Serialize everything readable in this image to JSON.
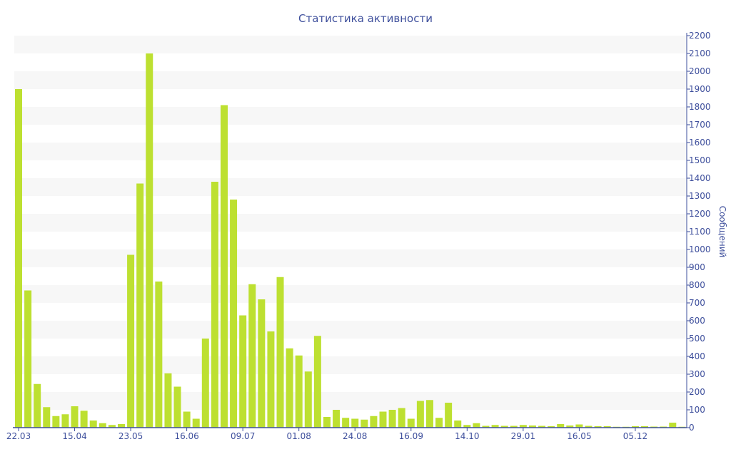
{
  "chart_data": {
    "type": "bar",
    "title": "Статистика активности",
    "ylabel": "Сообщений",
    "xlabel": "",
    "ylim": [
      0,
      2200
    ],
    "ytick_step": 100,
    "grid": "alternating horizontal bands",
    "y_axis_side": "right",
    "x_tick_every": 6,
    "x_tick_labels": [
      "22.03",
      "15.04",
      "23.05",
      "16.06",
      "09.07",
      "01.08",
      "24.08",
      "16.09",
      "14.10",
      "29.01",
      "16.05",
      "05.12"
    ],
    "values": [
      1900,
      770,
      245,
      115,
      65,
      75,
      120,
      95,
      40,
      25,
      15,
      20,
      970,
      1370,
      2100,
      820,
      305,
      230,
      90,
      50,
      500,
      1380,
      1810,
      1280,
      630,
      805,
      720,
      540,
      845,
      445,
      405,
      315,
      515,
      60,
      100,
      55,
      50,
      45,
      65,
      90,
      100,
      110,
      50,
      150,
      155,
      55,
      140,
      40,
      15,
      25,
      10,
      15,
      10,
      10,
      15,
      12,
      10,
      8,
      20,
      12,
      18,
      10,
      8,
      8,
      5,
      5,
      8,
      8,
      6,
      6,
      28,
      5
    ],
    "colors": {
      "bar": "#bde031",
      "axis": "#3e4f9c",
      "band": "#f7f7f7"
    }
  }
}
